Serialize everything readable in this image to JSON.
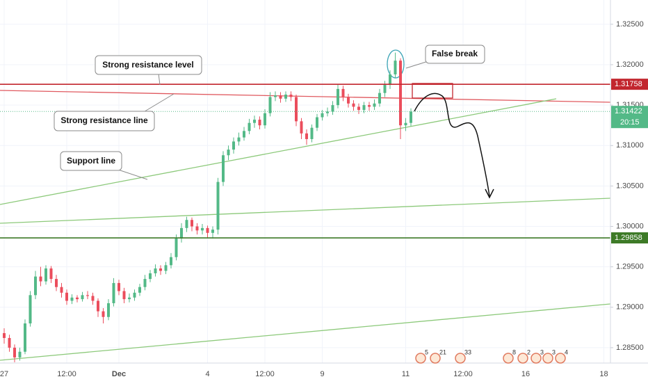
{
  "chart_data": {
    "type": "candlestick",
    "categories": [
      "27",
      null,
      null,
      null,
      null,
      null,
      null,
      null,
      null,
      null,
      null,
      null,
      "12:00",
      null,
      null,
      null,
      null,
      null,
      null,
      null,
      null,
      null,
      "Dec",
      null,
      null,
      null,
      null,
      null,
      null,
      null,
      null,
      null,
      null,
      null,
      null,
      null,
      null,
      null,
      null,
      "4",
      null,
      null,
      null,
      null,
      null,
      null,
      null,
      null,
      null,
      null,
      "12:00",
      null,
      null,
      null,
      null,
      null,
      null,
      null,
      null,
      null,
      null,
      "9",
      null,
      null,
      null,
      null,
      null,
      null,
      null,
      null,
      null,
      null,
      null,
      null,
      null,
      null,
      null,
      "11",
      null,
      null,
      null,
      null,
      null,
      null,
      null,
      null,
      null,
      null,
      "12:00",
      null,
      null,
      null,
      null,
      null,
      null,
      null,
      null,
      null,
      null,
      null,
      "16",
      null,
      null,
      null,
      null,
      null,
      null,
      null,
      null,
      null,
      null,
      null,
      null,
      null,
      null,
      "18",
      null
    ],
    "open": [
      1.2868,
      1.2862,
      1.285,
      1.2838,
      1.2845,
      1.288,
      1.2915,
      1.2938,
      1.2932,
      1.2948,
      1.2935,
      1.2925,
      1.2918,
      1.2908,
      1.2912,
      1.291,
      1.2915,
      1.2914,
      1.2908,
      1.2895,
      1.2888,
      1.2905,
      1.293,
      1.292,
      1.291,
      1.2912,
      1.2918,
      1.2925,
      1.2935,
      1.2942,
      1.2948,
      1.2945,
      1.2952,
      1.2962,
      1.2985,
      1.2998,
      1.3008,
      1.3,
      1.2995,
      1.2998,
      1.2992,
      1.2996,
      1.3055,
      1.3088,
      1.3095,
      1.3105,
      1.311,
      1.3118,
      1.3128,
      1.3132,
      1.3125,
      1.314,
      1.316,
      1.3162,
      1.3158,
      1.3163,
      1.316,
      1.313,
      1.3115,
      1.3108,
      1.3122,
      1.3135,
      1.314,
      1.3142,
      1.315,
      1.317,
      1.316,
      1.3152,
      1.3148,
      1.3144,
      1.315,
      1.3148,
      1.3152,
      1.3165,
      1.3175,
      1.3188,
      1.3205,
      1.3125,
      1.3128,
      null,
      null,
      null,
      null,
      null,
      null,
      null,
      null,
      null,
      null,
      null,
      null,
      null,
      null,
      null,
      null,
      null,
      null,
      null,
      null,
      null,
      null,
      null,
      null,
      null,
      null,
      null,
      null,
      null,
      null,
      null,
      null,
      null,
      null,
      null,
      null,
      null,
      null
    ],
    "high": [
      1.2874,
      1.2866,
      1.2854,
      1.285,
      1.2885,
      1.292,
      1.2945,
      1.295,
      1.2952,
      1.2951,
      1.294,
      1.293,
      1.2922,
      1.2916,
      1.2915,
      1.2919,
      1.292,
      1.2918,
      1.2911,
      1.2899,
      1.291,
      1.2936,
      1.2934,
      1.2924,
      1.2917,
      1.2922,
      1.2929,
      1.294,
      1.2946,
      1.2953,
      1.2952,
      1.2956,
      1.2967,
      1.299,
      1.3004,
      1.3012,
      1.3011,
      1.3004,
      1.3003,
      1.3001,
      1.3,
      1.306,
      1.3093,
      1.31,
      1.311,
      1.3116,
      1.3123,
      1.3133,
      1.3137,
      1.3136,
      1.3145,
      1.3166,
      1.3167,
      1.3166,
      1.3167,
      1.3167,
      1.3163,
      1.3134,
      1.312,
      1.3126,
      1.3139,
      1.3144,
      1.3147,
      1.3155,
      1.3176,
      1.3174,
      1.3164,
      1.3156,
      1.3152,
      1.3154,
      1.3154,
      1.3157,
      1.317,
      1.318,
      1.3193,
      1.3215,
      1.3208,
      1.3134,
      1.3146,
      null,
      null,
      null,
      null,
      null,
      null,
      null,
      null,
      null,
      null,
      null,
      null,
      null,
      null,
      null,
      null,
      null,
      null,
      null,
      null,
      null,
      null,
      null,
      null,
      null,
      null,
      null,
      null,
      null,
      null,
      null,
      null,
      null,
      null,
      null,
      null,
      null,
      null
    ],
    "low": [
      1.2855,
      1.2845,
      1.2832,
      1.2834,
      1.2842,
      1.2876,
      1.291,
      1.2926,
      1.2928,
      1.293,
      1.292,
      1.2912,
      1.2903,
      1.2904,
      1.2906,
      1.2907,
      1.291,
      1.2903,
      1.2888,
      1.288,
      1.2884,
      1.2901,
      1.2915,
      1.2905,
      1.2906,
      1.2908,
      1.2914,
      1.2921,
      1.2931,
      1.2938,
      1.294,
      1.2941,
      1.2948,
      1.2958,
      1.298,
      1.2993,
      1.2994,
      1.299,
      1.299,
      1.2986,
      1.2985,
      1.299,
      1.305,
      1.3082,
      1.309,
      1.31,
      1.3106,
      1.3114,
      1.3122,
      1.312,
      1.3121,
      1.3136,
      1.3155,
      1.3153,
      1.3154,
      1.3155,
      1.3124,
      1.3108,
      1.3101,
      1.3104,
      1.3118,
      1.3131,
      1.3136,
      1.3138,
      1.3146,
      1.3155,
      1.3147,
      1.3143,
      1.3139,
      1.314,
      1.3143,
      1.3144,
      1.3148,
      1.316,
      1.317,
      1.3183,
      1.3108,
      1.3118,
      1.3124,
      null,
      null,
      null,
      null,
      null,
      null,
      null,
      null,
      null,
      null,
      null,
      null,
      null,
      null,
      null,
      null,
      null,
      null,
      null,
      null,
      null,
      null,
      null,
      null,
      null,
      null,
      null,
      null,
      null,
      null,
      null,
      null,
      null,
      null,
      null,
      null,
      null,
      null
    ],
    "close": [
      1.2862,
      1.285,
      1.2838,
      1.2845,
      1.288,
      1.2915,
      1.2938,
      1.2932,
      1.2948,
      1.2935,
      1.2925,
      1.2918,
      1.2908,
      1.2912,
      1.291,
      1.2915,
      1.2914,
      1.2908,
      1.2895,
      1.2888,
      1.2905,
      1.293,
      1.292,
      1.291,
      1.2912,
      1.2918,
      1.2925,
      1.2935,
      1.2942,
      1.2948,
      1.2945,
      1.2952,
      1.2962,
      1.2985,
      1.2998,
      1.3008,
      1.3,
      1.2995,
      1.2998,
      1.2992,
      1.2996,
      1.3055,
      1.3088,
      1.3095,
      1.3105,
      1.311,
      1.3118,
      1.3128,
      1.3132,
      1.3125,
      1.314,
      1.316,
      1.3162,
      1.3158,
      1.3163,
      1.316,
      1.313,
      1.3115,
      1.3108,
      1.3122,
      1.3135,
      1.314,
      1.3142,
      1.315,
      1.317,
      1.316,
      1.3152,
      1.3148,
      1.3144,
      1.315,
      1.3148,
      1.3152,
      1.3165,
      1.3175,
      1.3188,
      1.3205,
      1.3125,
      1.3128,
      1.3142,
      null,
      null,
      null,
      null,
      null,
      null,
      null,
      null,
      null,
      null,
      null,
      null,
      null,
      null,
      null,
      null,
      null,
      null,
      null,
      null,
      null,
      null,
      null,
      null,
      null,
      null,
      null,
      null,
      null,
      null,
      null,
      null,
      null,
      null,
      null,
      null,
      null,
      null
    ],
    "up_color": "#53b987",
    "down_color": "#eb4d5c",
    "ylim": [
      1.2831,
      1.328
    ],
    "yticks": [
      {
        "value": 1.285,
        "label": "1.28500"
      },
      {
        "value": 1.29,
        "label": "1.29000"
      },
      {
        "value": 1.295,
        "label": "1.29500"
      },
      {
        "value": 1.3,
        "label": "1.30000"
      },
      {
        "value": 1.305,
        "label": "1.30500"
      },
      {
        "value": 1.31,
        "label": "1.31000"
      },
      {
        "value": 1.315,
        "label": "1.31500"
      },
      {
        "value": 1.32,
        "label": "1.32000"
      },
      {
        "value": 1.325,
        "label": "1.32500"
      }
    ],
    "grid": true,
    "levels": [
      {
        "value": 1.31758,
        "color": "#c2262e"
      },
      {
        "value": 1.29858,
        "color": "#3d7a27"
      }
    ],
    "last_price": {
      "value": 1.31422,
      "countdown": "20:15",
      "color": "#53b987"
    },
    "annotations": [
      "Strong resistance level",
      "Strong resistance line",
      "Support line",
      "False break"
    ],
    "event_labels": [
      "5",
      "21",
      "33",
      "8",
      "2",
      "3",
      "3",
      "4"
    ]
  }
}
